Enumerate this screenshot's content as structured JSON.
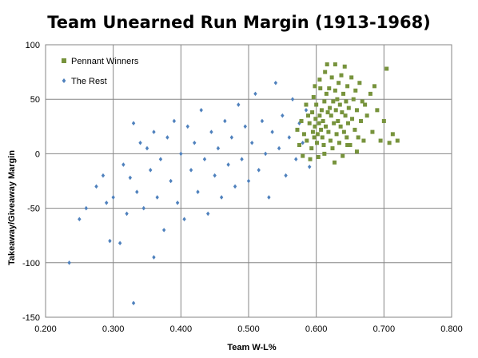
{
  "chart_data": {
    "type": "scatter",
    "title": "Team Unearned Run Margin (1913-1968)",
    "xlabel": "Team W-L%",
    "ylabel": "Takeaway/Giveaway  Margin",
    "xlim": [
      0.2,
      0.8
    ],
    "ylim": [
      -150,
      100
    ],
    "x_ticks": [
      "0.200",
      "0.300",
      "0.400",
      "0.500",
      "0.600",
      "0.700",
      "0.800"
    ],
    "y_ticks": [
      "100",
      "50",
      "0",
      "-50",
      "-100",
      "-150"
    ],
    "grid": true,
    "legend_position": "top-left",
    "series": [
      {
        "name": "Pennant Winners",
        "color": "#77933C",
        "marker": "square",
        "points": [
          [
            0.572,
            22
          ],
          [
            0.575,
            8
          ],
          [
            0.578,
            30
          ],
          [
            0.58,
            -2
          ],
          [
            0.582,
            18
          ],
          [
            0.585,
            45
          ],
          [
            0.586,
            12
          ],
          [
            0.588,
            35
          ],
          [
            0.59,
            28
          ],
          [
            0.591,
            -5
          ],
          [
            0.593,
            5
          ],
          [
            0.594,
            38
          ],
          [
            0.595,
            20
          ],
          [
            0.596,
            52
          ],
          [
            0.597,
            15
          ],
          [
            0.598,
            25
          ],
          [
            0.599,
            32
          ],
          [
            0.6,
            45
          ],
          [
            0.601,
            10
          ],
          [
            0.602,
            18
          ],
          [
            0.603,
            -3
          ],
          [
            0.604,
            28
          ],
          [
            0.605,
            35
          ],
          [
            0.606,
            60
          ],
          [
            0.607,
            22
          ],
          [
            0.608,
            40
          ],
          [
            0.609,
            15
          ],
          [
            0.61,
            30
          ],
          [
            0.611,
            8
          ],
          [
            0.612,
            48
          ],
          [
            0.613,
            75
          ],
          [
            0.614,
            25
          ],
          [
            0.615,
            55
          ],
          [
            0.616,
            82
          ],
          [
            0.617,
            38
          ],
          [
            0.618,
            20
          ],
          [
            0.619,
            60
          ],
          [
            0.62,
            42
          ],
          [
            0.621,
            12
          ],
          [
            0.622,
            35
          ],
          [
            0.623,
            70
          ],
          [
            0.624,
            5
          ],
          [
            0.625,
            48
          ],
          [
            0.626,
            28
          ],
          [
            0.627,
            -8
          ],
          [
            0.628,
            58
          ],
          [
            0.629,
            40
          ],
          [
            0.63,
            18
          ],
          [
            0.631,
            50
          ],
          [
            0.632,
            30
          ],
          [
            0.633,
            65
          ],
          [
            0.634,
            10
          ],
          [
            0.635,
            45
          ],
          [
            0.636,
            25
          ],
          [
            0.637,
            72
          ],
          [
            0.638,
            38
          ],
          [
            0.639,
            -2
          ],
          [
            0.64,
            55
          ],
          [
            0.641,
            20
          ],
          [
            0.642,
            80
          ],
          [
            0.643,
            35
          ],
          [
            0.644,
            48
          ],
          [
            0.645,
            15
          ],
          [
            0.646,
            62
          ],
          [
            0.647,
            28
          ],
          [
            0.648,
            42
          ],
          [
            0.65,
            8
          ],
          [
            0.652,
            70
          ],
          [
            0.653,
            32
          ],
          [
            0.655,
            50
          ],
          [
            0.657,
            22
          ],
          [
            0.658,
            58
          ],
          [
            0.66,
            40
          ],
          [
            0.662,
            15
          ],
          [
            0.664,
            65
          ],
          [
            0.666,
            30
          ],
          [
            0.668,
            48
          ],
          [
            0.67,
            12
          ],
          [
            0.672,
            45
          ],
          [
            0.675,
            35
          ],
          [
            0.68,
            55
          ],
          [
            0.683,
            20
          ],
          [
            0.686,
            62
          ],
          [
            0.69,
            40
          ],
          [
            0.695,
            12
          ],
          [
            0.7,
            30
          ],
          [
            0.704,
            78
          ],
          [
            0.708,
            10
          ],
          [
            0.713,
            18
          ],
          [
            0.72,
            12
          ],
          [
            0.646,
            8
          ],
          [
            0.66,
            2
          ],
          [
            0.612,
            0
          ],
          [
            0.598,
            62
          ],
          [
            0.605,
            68
          ],
          [
            0.628,
            82
          ]
        ]
      },
      {
        "name": "The Rest",
        "color": "#4F81BD",
        "marker": "diamond",
        "points": [
          [
            0.235,
            -100
          ],
          [
            0.25,
            -60
          ],
          [
            0.26,
            -50
          ],
          [
            0.275,
            -30
          ],
          [
            0.285,
            -20
          ],
          [
            0.29,
            -45
          ],
          [
            0.295,
            -80
          ],
          [
            0.3,
            -40
          ],
          [
            0.31,
            -82
          ],
          [
            0.315,
            -10
          ],
          [
            0.32,
            -55
          ],
          [
            0.325,
            -22
          ],
          [
            0.33,
            28
          ],
          [
            0.33,
            -137
          ],
          [
            0.335,
            -35
          ],
          [
            0.34,
            10
          ],
          [
            0.345,
            -50
          ],
          [
            0.35,
            5
          ],
          [
            0.355,
            -15
          ],
          [
            0.36,
            20
          ],
          [
            0.36,
            -95
          ],
          [
            0.365,
            -40
          ],
          [
            0.37,
            -5
          ],
          [
            0.375,
            -70
          ],
          [
            0.38,
            15
          ],
          [
            0.385,
            -25
          ],
          [
            0.39,
            30
          ],
          [
            0.395,
            -45
          ],
          [
            0.4,
            0
          ],
          [
            0.405,
            -60
          ],
          [
            0.41,
            25
          ],
          [
            0.415,
            -15
          ],
          [
            0.42,
            10
          ],
          [
            0.425,
            -35
          ],
          [
            0.43,
            40
          ],
          [
            0.435,
            -5
          ],
          [
            0.44,
            -55
          ],
          [
            0.445,
            20
          ],
          [
            0.45,
            -20
          ],
          [
            0.455,
            5
          ],
          [
            0.46,
            -40
          ],
          [
            0.465,
            30
          ],
          [
            0.47,
            -10
          ],
          [
            0.475,
            15
          ],
          [
            0.48,
            -30
          ],
          [
            0.485,
            45
          ],
          [
            0.49,
            -5
          ],
          [
            0.495,
            25
          ],
          [
            0.5,
            -25
          ],
          [
            0.505,
            10
          ],
          [
            0.51,
            55
          ],
          [
            0.515,
            -15
          ],
          [
            0.52,
            30
          ],
          [
            0.525,
            0
          ],
          [
            0.53,
            -40
          ],
          [
            0.535,
            20
          ],
          [
            0.54,
            65
          ],
          [
            0.545,
            5
          ],
          [
            0.55,
            35
          ],
          [
            0.555,
            -20
          ],
          [
            0.56,
            15
          ],
          [
            0.565,
            50
          ],
          [
            0.57,
            -5
          ],
          [
            0.575,
            28
          ],
          [
            0.58,
            10
          ],
          [
            0.585,
            40
          ],
          [
            0.59,
            -12
          ],
          [
            0.595,
            20
          ]
        ]
      }
    ]
  }
}
